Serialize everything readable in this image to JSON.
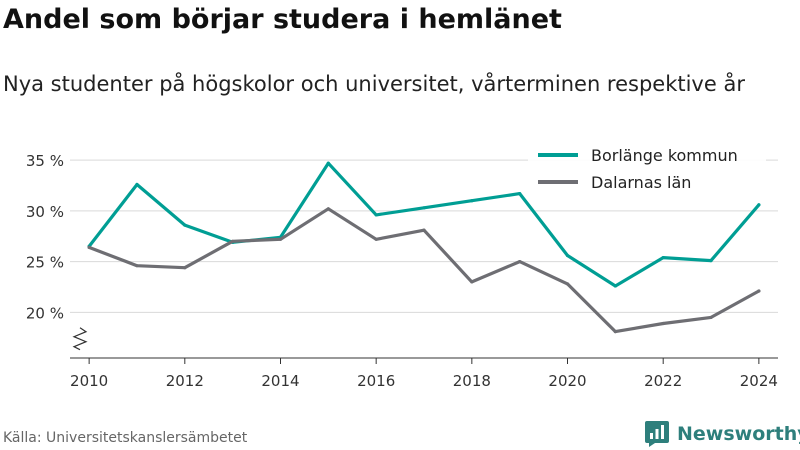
{
  "header": {
    "title": "Andel som börjar studera i hemlänet",
    "subtitle": "Nya studenter på högskolor och universitet, vårterminen respektive år"
  },
  "footer": {
    "source": "Källa: Universitetskanslersämbetet",
    "brand": "Newsworthy",
    "brand_icon": "newsworthy-logo-icon",
    "brand_color": "#2e7f7c"
  },
  "chart_data": {
    "type": "line",
    "title": "Andel som börjar studera i hemlänet",
    "subtitle": "Nya studenter på högskolor och universitet, vårterminen respektive år",
    "xlabel": "",
    "ylabel": "",
    "x": [
      2010,
      2011,
      2012,
      2013,
      2014,
      2015,
      2016,
      2017,
      2018,
      2019,
      2020,
      2021,
      2022,
      2023,
      2024
    ],
    "xticks": [
      2010,
      2012,
      2014,
      2016,
      2018,
      2020,
      2022,
      2024
    ],
    "xtick_labels": [
      "2010",
      "2012",
      "2014",
      "2016",
      "2018",
      "2020",
      "2022",
      "2024"
    ],
    "yticks": [
      20,
      25,
      30,
      35
    ],
    "ytick_labels": [
      "20 %",
      "25 %",
      "30 %",
      "35 %"
    ],
    "ylim": [
      15.5,
      36
    ],
    "xlim": [
      2009.6,
      2024.4
    ],
    "y_axis_break": true,
    "grid": "horizontal",
    "legend_position": "top-right",
    "series": [
      {
        "name": "Borlänge kommun",
        "color": "#009e94",
        "values": [
          26.5,
          32.6,
          28.6,
          26.9,
          27.4,
          34.7,
          29.6,
          30.3,
          31.0,
          31.7,
          25.6,
          22.6,
          25.4,
          25.1,
          30.6
        ]
      },
      {
        "name": "Dalarnas län",
        "color": "#6e6e73",
        "values": [
          26.4,
          24.6,
          24.4,
          27.0,
          27.2,
          30.2,
          27.2,
          28.1,
          23.0,
          25.0,
          22.8,
          18.1,
          18.9,
          19.5,
          22.1
        ]
      }
    ]
  }
}
